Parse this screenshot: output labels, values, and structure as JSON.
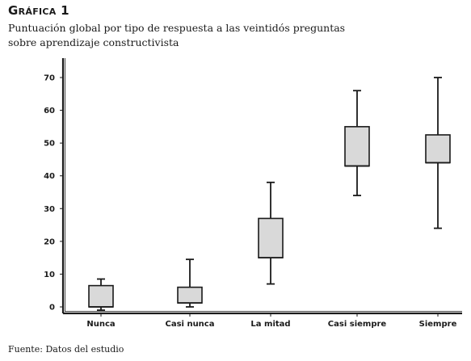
{
  "figure": {
    "label": "Gráfica 1",
    "title": "Puntuación global por tipo de respuesta a las veintidós preguntas sobre aprendizaje constructivista",
    "source": "Fuente: Datos del estudio"
  },
  "chart_data": {
    "type": "box",
    "categories": [
      "Nunca",
      "Casi nunca",
      "La mitad",
      "Casi siempre",
      "Siempre"
    ],
    "series": [
      {
        "boxes": [
          {
            "min": -1,
            "q1": 0,
            "median": 0,
            "q3": 6.5,
            "max": 8.5
          },
          {
            "min": 0,
            "q1": 1.2,
            "median": 1.2,
            "q3": 6,
            "max": 14.5
          },
          {
            "min": 7,
            "q1": 15,
            "median": 15,
            "q3": 27,
            "max": 38
          },
          {
            "min": 34,
            "q1": 43,
            "median": 43,
            "q3": 55,
            "max": 66
          },
          {
            "min": 24,
            "q1": 44,
            "median": 44,
            "q3": 52.5,
            "max": 70
          }
        ]
      }
    ],
    "yticks": [
      0,
      10,
      20,
      30,
      40,
      50,
      60,
      70
    ],
    "ylim": [
      -2,
      74
    ],
    "grid": false,
    "xlabel": "",
    "ylabel": "",
    "colors": {
      "box_fill": "#d9d9d9",
      "stroke": "#1a1a1a"
    }
  }
}
